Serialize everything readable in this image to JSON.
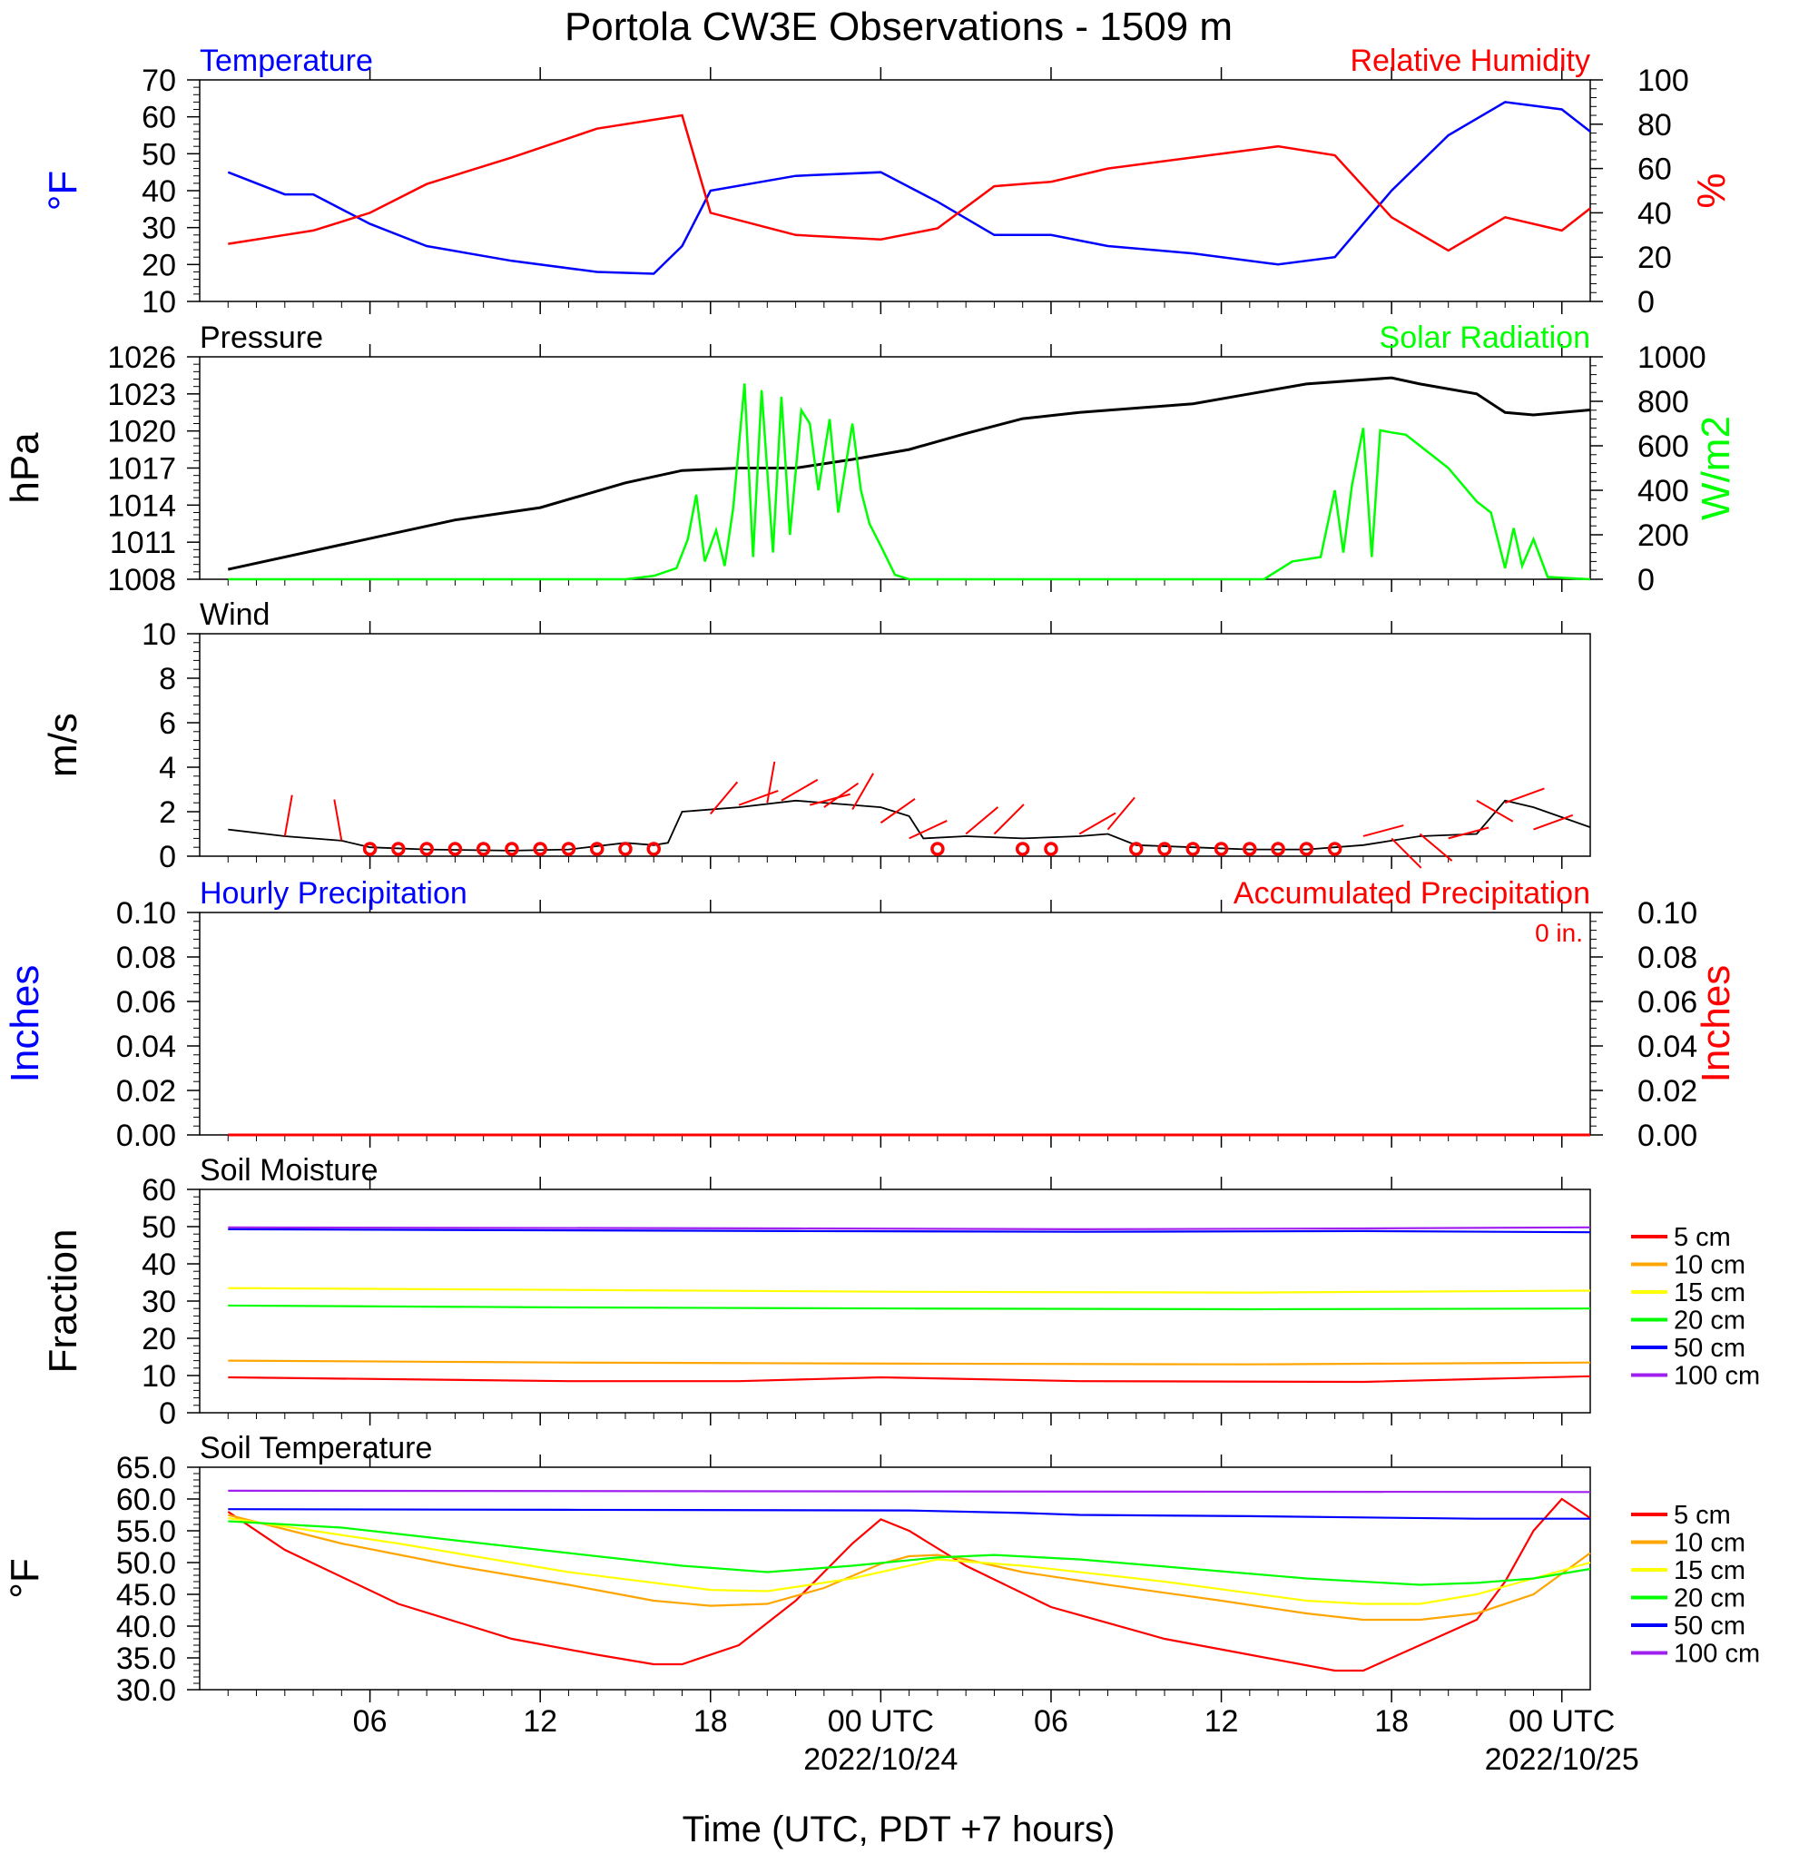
{
  "page": {
    "title": "Portola CW3E Observations - 1509 m",
    "xaxis_title": "Time (UTC, PDT +7 hours)"
  },
  "colors": {
    "blue": "#0000ff",
    "red": "#ff0000",
    "green": "#00ff00",
    "black": "#000000",
    "soil": {
      "5 cm": "#ff0000",
      "10 cm": "#ffa500",
      "15 cm": "#ffff00",
      "20 cm": "#00ff00",
      "50 cm": "#0000ff",
      "100 cm": "#a020f0"
    }
  },
  "chart_data": [
    {
      "type": "line",
      "name": "temperature_rh",
      "title_left": "Temperature",
      "title_right": "Relative Humidity",
      "ylabel_left": "°F",
      "ylabel_right": "%",
      "ylim_left": [
        10,
        70
      ],
      "yticks_left": [
        10,
        20,
        30,
        40,
        50,
        60,
        70
      ],
      "ylim_right": [
        0,
        100
      ],
      "yticks_right": [
        0,
        20,
        40,
        60,
        80,
        100
      ],
      "x_hours": [
        0,
        2,
        3,
        5,
        7,
        10,
        13,
        15,
        16,
        17,
        20,
        23,
        25,
        27,
        29,
        31,
        34,
        37,
        39,
        41,
        43,
        45,
        47,
        48
      ],
      "series": [
        {
          "name": "Temperature",
          "axis": "left",
          "color": "#0000ff",
          "values": [
            45,
            39,
            39,
            31,
            25,
            21,
            18,
            17.5,
            25,
            40,
            44,
            45,
            37,
            28,
            28,
            25,
            23,
            20,
            22,
            40,
            55,
            64,
            62,
            56
          ]
        },
        {
          "name": "Relative Humidity",
          "axis": "right",
          "color": "#ff0000",
          "values": [
            26,
            30,
            32,
            40,
            53,
            65,
            78,
            82,
            84,
            40,
            30,
            28,
            33,
            52,
            54,
            60,
            65,
            70,
            66,
            38,
            23,
            38,
            32,
            42
          ]
        }
      ]
    },
    {
      "type": "line",
      "name": "pressure_solar",
      "title_left": "Pressure",
      "title_right": "Solar Radiation",
      "ylabel_left": "hPa",
      "ylabel_right": "W/m2",
      "ylim_left": [
        1008,
        1026
      ],
      "yticks_left": [
        1008,
        1011,
        1014,
        1017,
        1020,
        1023,
        1026
      ],
      "ylim_right": [
        0,
        1000
      ],
      "yticks_right": [
        0,
        200,
        400,
        600,
        800,
        1000
      ],
      "series": [
        {
          "name": "Pressure",
          "axis": "left",
          "color": "#000000",
          "x_hours": [
            0,
            4,
            8,
            11,
            14,
            16,
            18,
            20,
            22,
            24,
            26,
            28,
            30,
            34,
            36,
            38,
            41,
            42,
            44,
            45,
            46,
            48
          ],
          "values": [
            1008.8,
            1010.8,
            1012.8,
            1013.8,
            1015.8,
            1016.8,
            1017.0,
            1017.0,
            1017.7,
            1018.5,
            1019.8,
            1021.0,
            1021.5,
            1022.2,
            1023.0,
            1023.8,
            1024.3,
            1023.8,
            1023.0,
            1021.5,
            1021.3,
            1021.7
          ]
        },
        {
          "name": "Solar Radiation",
          "axis": "right",
          "color": "#00ff00",
          "x_hours": [
            0,
            14,
            15,
            15.8,
            16.2,
            16.5,
            16.8,
            17.2,
            17.5,
            17.8,
            18.2,
            18.5,
            18.8,
            19.2,
            19.5,
            19.8,
            20.2,
            20.5,
            20.8,
            21.2,
            21.5,
            22.0,
            22.3,
            22.6,
            23.0,
            23.5,
            24.0,
            36.5,
            37.5,
            38.5,
            39.0,
            39.3,
            39.6,
            40.0,
            40.3,
            40.6,
            41.0,
            41.5,
            42.0,
            43.0,
            44.0,
            44.5,
            45.0,
            45.3,
            45.6,
            46.0,
            46.5,
            48
          ],
          "values": [
            0,
            0,
            15,
            50,
            180,
            380,
            80,
            220,
            60,
            320,
            880,
            100,
            850,
            120,
            820,
            200,
            760,
            700,
            400,
            720,
            300,
            700,
            400,
            250,
            150,
            20,
            0,
            0,
            80,
            100,
            400,
            120,
            420,
            680,
            100,
            670,
            660,
            650,
            600,
            500,
            350,
            300,
            50,
            230,
            60,
            180,
            10,
            0
          ]
        }
      ]
    },
    {
      "type": "line",
      "name": "wind",
      "title_left": "Wind",
      "ylabel_left": "m/s",
      "ylim_left": [
        0,
        10
      ],
      "yticks_left": [
        0,
        2,
        4,
        6,
        8,
        10
      ],
      "series": [
        {
          "name": "Wind",
          "axis": "left",
          "color": "#000000",
          "x_hours": [
            0,
            2,
            4,
            5,
            7,
            10,
            12,
            14,
            15,
            15.5,
            16,
            18,
            20,
            22,
            23,
            24,
            24.5,
            26,
            28,
            30,
            31,
            32,
            34,
            36,
            38,
            40,
            41,
            42,
            44,
            45,
            46,
            48
          ],
          "values": [
            1.2,
            0.9,
            0.7,
            0.4,
            0.3,
            0.25,
            0.3,
            0.6,
            0.5,
            0.6,
            2.0,
            2.2,
            2.5,
            2.3,
            2.2,
            1.8,
            0.8,
            0.9,
            0.8,
            0.9,
            1.0,
            0.5,
            0.4,
            0.3,
            0.3,
            0.5,
            0.7,
            0.9,
            1.0,
            2.5,
            2.2,
            1.3
          ]
        }
      ],
      "calm_hours": [
        5,
        6,
        7,
        8,
        9,
        10,
        11,
        12,
        13,
        14,
        15,
        25,
        28,
        29,
        32,
        33,
        34,
        35,
        36,
        37,
        38,
        39
      ],
      "barbs": [
        {
          "hour": 2,
          "value": 0.9,
          "angle": -80
        },
        {
          "hour": 4,
          "value": 0.7,
          "angle": -100
        },
        {
          "hour": 17,
          "value": 1.9,
          "angle": -50
        },
        {
          "hour": 18,
          "value": 2.3,
          "angle": -20
        },
        {
          "hour": 19,
          "value": 2.4,
          "angle": -80
        },
        {
          "hour": 19.5,
          "value": 2.5,
          "angle": -30
        },
        {
          "hour": 20.5,
          "value": 2.3,
          "angle": -15
        },
        {
          "hour": 21,
          "value": 2.2,
          "angle": -35
        },
        {
          "hour": 22,
          "value": 2.1,
          "angle": -60
        },
        {
          "hour": 23,
          "value": 1.5,
          "angle": -35
        },
        {
          "hour": 24,
          "value": 0.8,
          "angle": -25
        },
        {
          "hour": 26,
          "value": 1.0,
          "angle": -40
        },
        {
          "hour": 27,
          "value": 1.0,
          "angle": -45
        },
        {
          "hour": 30,
          "value": 1.0,
          "angle": -30
        },
        {
          "hour": 31,
          "value": 1.2,
          "angle": -50
        },
        {
          "hour": 40,
          "value": 0.9,
          "angle": -15
        },
        {
          "hour": 41,
          "value": 0.8,
          "angle": 45
        },
        {
          "hour": 42,
          "value": 1.0,
          "angle": 40
        },
        {
          "hour": 43,
          "value": 0.8,
          "angle": -15
        },
        {
          "hour": 44,
          "value": 2.5,
          "angle": 30
        },
        {
          "hour": 45,
          "value": 2.4,
          "angle": -20
        },
        {
          "hour": 46,
          "value": 1.2,
          "angle": -20
        }
      ]
    },
    {
      "type": "line",
      "name": "precipitation",
      "title_left": "Hourly Precipitation",
      "title_right": "Accumulated Precipitation",
      "accum_text": "0 in.",
      "ylabel_left": "Inches",
      "ylabel_right": "Inches",
      "ylim_left": [
        0,
        0.1
      ],
      "yticks_left": [
        "0.00",
        "0.02",
        "0.04",
        "0.06",
        "0.08",
        "0.10"
      ],
      "ylim_right": [
        0,
        0.1
      ],
      "yticks_right": [
        "0.00",
        "0.02",
        "0.04",
        "0.06",
        "0.08",
        "0.10"
      ],
      "series": [
        {
          "name": "Hourly Precipitation",
          "color": "#0000ff",
          "x_hours": [
            0,
            48
          ],
          "values": [
            0,
            0
          ]
        },
        {
          "name": "Accumulated Precipitation",
          "color": "#ff0000",
          "x_hours": [
            0,
            48
          ],
          "values": [
            0,
            0
          ]
        }
      ]
    },
    {
      "type": "line",
      "name": "soil_moisture",
      "title_left": "Soil Moisture",
      "ylabel_left": "Fraction",
      "ylim_left": [
        0,
        60
      ],
      "yticks_left": [
        0,
        10,
        20,
        30,
        40,
        50,
        60
      ],
      "legend": [
        "5 cm",
        "10 cm",
        "15 cm",
        "20 cm",
        "50 cm",
        "100 cm"
      ],
      "series": [
        {
          "name": "5 cm",
          "x_hours": [
            0,
            12,
            18,
            23,
            30,
            40,
            48
          ],
          "values": [
            9.5,
            8.5,
            8.5,
            9.5,
            8.5,
            8.3,
            9.8
          ]
        },
        {
          "name": "10 cm",
          "x_hours": [
            0,
            12,
            24,
            36,
            48
          ],
          "values": [
            14,
            13.5,
            13.2,
            13,
            13.5
          ]
        },
        {
          "name": "15 cm",
          "x_hours": [
            0,
            12,
            24,
            36,
            48
          ],
          "values": [
            33.5,
            33,
            32.5,
            32.3,
            32.8
          ]
        },
        {
          "name": "20 cm",
          "x_hours": [
            0,
            12,
            24,
            36,
            48
          ],
          "values": [
            28.8,
            28.3,
            28,
            27.8,
            28
          ]
        },
        {
          "name": "50 cm",
          "x_hours": [
            0,
            20,
            30,
            40,
            48
          ],
          "values": [
            49.3,
            48.8,
            48.6,
            48.8,
            48.5
          ]
        },
        {
          "name": "100 cm",
          "x_hours": [
            0,
            20,
            30,
            40,
            48
          ],
          "values": [
            49.8,
            49.5,
            49.3,
            49.5,
            49.8
          ]
        }
      ]
    },
    {
      "type": "line",
      "name": "soil_temperature",
      "title_left": "Soil Temperature",
      "ylabel_left": "°F",
      "ylim_left": [
        30,
        65
      ],
      "yticks_left": [
        "30.0",
        "35.0",
        "40.0",
        "45.0",
        "50.0",
        "55.0",
        "60.0",
        "65.0"
      ],
      "legend": [
        "5 cm",
        "10 cm",
        "15 cm",
        "20 cm",
        "50 cm",
        "100 cm"
      ],
      "series": [
        {
          "name": "5 cm",
          "x_hours": [
            0,
            2,
            6,
            10,
            13,
            15,
            16,
            18,
            20,
            22,
            23,
            24,
            26,
            29,
            33,
            36,
            39,
            40,
            42,
            44,
            45,
            46,
            47,
            48
          ],
          "values": [
            58,
            52,
            43.5,
            38,
            35.5,
            34,
            34,
            37,
            44,
            53,
            56.8,
            55,
            49.5,
            43,
            38,
            35.5,
            33,
            33,
            37,
            41,
            47,
            55,
            60,
            57
          ]
        },
        {
          "name": "10 cm",
          "x_hours": [
            0,
            4,
            8,
            12,
            15,
            17,
            19,
            21,
            23,
            24,
            25,
            26,
            28,
            31,
            35,
            38,
            40,
            42,
            44,
            46,
            48
          ],
          "values": [
            57.5,
            53,
            49.5,
            46.5,
            44,
            43.2,
            43.5,
            46,
            49.8,
            51,
            51.2,
            50.5,
            48.5,
            46.5,
            44,
            42,
            41,
            41,
            42,
            45,
            51.5
          ]
        },
        {
          "name": "15 cm",
          "x_hours": [
            0,
            6,
            12,
            17,
            19,
            22,
            25,
            28,
            33,
            38,
            40,
            42,
            44,
            46,
            48
          ],
          "values": [
            57,
            53,
            48.5,
            45.7,
            45.5,
            47.5,
            50.5,
            49.5,
            47,
            44,
            43.5,
            43.5,
            45,
            47.5,
            50
          ]
        },
        {
          "name": "20 cm",
          "x_hours": [
            0,
            4,
            8,
            12,
            16,
            19,
            22,
            25,
            27,
            30,
            34,
            38,
            42,
            44,
            46,
            48
          ],
          "values": [
            56.5,
            55.5,
            53.5,
            51.5,
            49.5,
            48.5,
            49.5,
            50.8,
            51.2,
            50.5,
            49,
            47.5,
            46.5,
            46.8,
            47.5,
            49
          ]
        },
        {
          "name": "50 cm",
          "x_hours": [
            0,
            12,
            24,
            28,
            30,
            36,
            40,
            44,
            48
          ],
          "values": [
            58.4,
            58.3,
            58.2,
            57.8,
            57.5,
            57.3,
            57.1,
            56.9,
            56.9
          ]
        },
        {
          "name": "100 cm",
          "x_hours": [
            0,
            24,
            48
          ],
          "values": [
            61.3,
            61.2,
            61.1
          ]
        }
      ]
    }
  ],
  "xaxis": {
    "range_hours": [
      -1,
      48
    ],
    "ticks": [
      {
        "hour": 5,
        "label": "06",
        "date": ""
      },
      {
        "hour": 11,
        "label": "12",
        "date": ""
      },
      {
        "hour": 17,
        "label": "18",
        "date": ""
      },
      {
        "hour": 23,
        "label": "00 UTC",
        "date": "2022/10/24"
      },
      {
        "hour": 29,
        "label": "06",
        "date": ""
      },
      {
        "hour": 35,
        "label": "12",
        "date": ""
      },
      {
        "hour": 41,
        "label": "18",
        "date": ""
      },
      {
        "hour": 47,
        "label": "00 UTC",
        "date": "2022/10/25"
      }
    ]
  }
}
